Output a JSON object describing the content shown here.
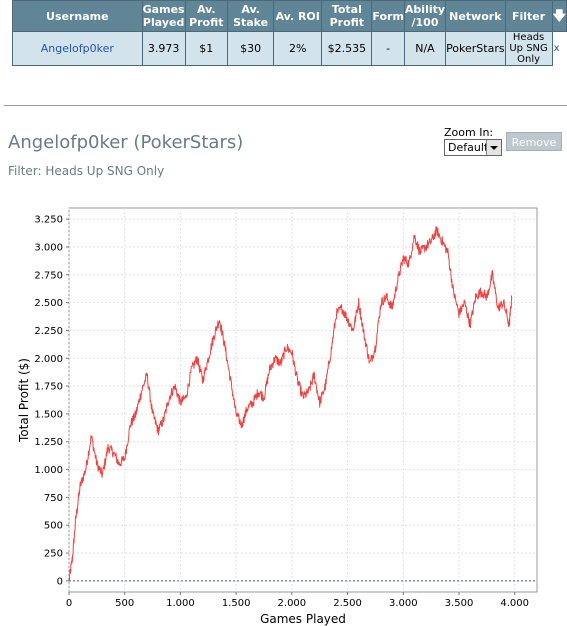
{
  "table": {
    "headers": [
      "Username",
      "Games Played",
      "Av. Profit",
      "Av. Stake",
      "Av. ROI",
      "Total Profit",
      "Form",
      "Ability /100",
      "Network",
      "Filter"
    ],
    "sort_icon": "down-arrow-icon",
    "row": {
      "username": "Angelofp0ker",
      "games_played": "3.973",
      "av_profit": "$1",
      "av_stake": "$30",
      "av_roi": "2%",
      "total_profit": "$2.535",
      "form": "-",
      "ability": "N/A",
      "network": "PokerStars",
      "filter": "Heads Up SNG Only",
      "remove": "x"
    }
  },
  "header": {
    "title": "Angelofp0ker (PokerStars)",
    "filter_text": "Filter: Heads Up SNG Only",
    "zoom_label": "Zoom In:",
    "zoom_value": "Default",
    "remove_label": "Remove"
  },
  "chart_data": {
    "type": "line",
    "xlabel": "Games Played",
    "ylabel": "Total Profit ($)",
    "xlim": [
      0,
      4200
    ],
    "ylim": [
      -100,
      3350
    ],
    "x_ticks": [
      0,
      500,
      1000,
      1500,
      2000,
      2500,
      3000,
      3500,
      4000
    ],
    "x_tick_labels": [
      "0",
      "500",
      "1.000",
      "1.500",
      "2.000",
      "2.500",
      "3.000",
      "3.500",
      "4.000"
    ],
    "y_ticks": [
      0,
      250,
      500,
      750,
      1000,
      1250,
      1500,
      1750,
      2000,
      2250,
      2500,
      2750,
      3000,
      3250
    ],
    "y_tick_labels": [
      "0",
      "250",
      "500",
      "750",
      "1.000",
      "1.250",
      "1.500",
      "1.750",
      "2.000",
      "2.250",
      "2.500",
      "2.750",
      "3.000",
      "3.250"
    ],
    "grid": true,
    "line_color": "#f04040",
    "zero_line_color": "#4a5acf",
    "series": [
      {
        "x": [
          0,
          30,
          60,
          100,
          150,
          200,
          250,
          300,
          350,
          400,
          450,
          500,
          550,
          600,
          650,
          700,
          750,
          800,
          850,
          900,
          950,
          1000,
          1050,
          1100,
          1150,
          1200,
          1250,
          1300,
          1350,
          1400,
          1450,
          1500,
          1550,
          1600,
          1650,
          1700,
          1750,
          1800,
          1850,
          1900,
          1950,
          2000,
          2050,
          2100,
          2150,
          2200,
          2250,
          2300,
          2350,
          2400,
          2450,
          2500,
          2550,
          2600,
          2650,
          2700,
          2750,
          2800,
          2850,
          2900,
          2950,
          3000,
          3050,
          3100,
          3150,
          3200,
          3250,
          3300,
          3350,
          3400,
          3450,
          3500,
          3550,
          3600,
          3650,
          3700,
          3750,
          3800,
          3850,
          3900,
          3950,
          3973
        ],
        "y": [
          0,
          200,
          550,
          850,
          1000,
          1300,
          1050,
          950,
          1200,
          1150,
          1050,
          1100,
          1400,
          1500,
          1700,
          1850,
          1500,
          1350,
          1450,
          1650,
          1750,
          1600,
          1650,
          1900,
          2000,
          1800,
          2000,
          2200,
          2350,
          2100,
          1800,
          1500,
          1400,
          1550,
          1600,
          1700,
          1650,
          1900,
          2000,
          1950,
          2100,
          2050,
          1800,
          1650,
          1700,
          1850,
          1600,
          1750,
          2050,
          2400,
          2450,
          2350,
          2250,
          2500,
          2200,
          1950,
          2100,
          2500,
          2550,
          2450,
          2700,
          2900,
          2850,
          3100,
          2950,
          3000,
          3050,
          3150,
          3050,
          2950,
          2600,
          2400,
          2500,
          2300,
          2550,
          2600,
          2550,
          2750,
          2450,
          2500,
          2300,
          2535
        ]
      }
    ]
  }
}
